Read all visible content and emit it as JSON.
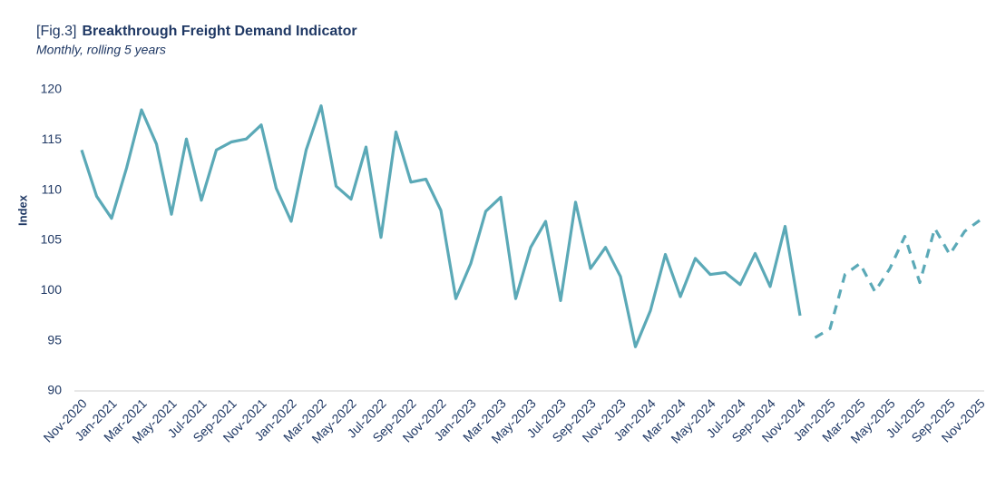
{
  "chart_data": {
    "type": "line",
    "figure_label": "[Fig.3]",
    "title": "Breakthrough Freight Demand Indicator",
    "subtitle": "Monthly, rolling 5 years",
    "ylabel": "Index",
    "categories": [
      "Nov-2020",
      null,
      "Jan-2021",
      null,
      "Mar-2021",
      null,
      "May-2021",
      null,
      "Jul-2021",
      null,
      "Sep-2021",
      null,
      "Nov-2021",
      null,
      "Jan-2022",
      null,
      "Mar-2022",
      null,
      "May-2022",
      null,
      "Jul-2022",
      null,
      "Sep-2022",
      null,
      "Nov-2022",
      null,
      "Jan-2023",
      null,
      "Mar-2023",
      null,
      "May-2023",
      null,
      "Jul-2023",
      null,
      "Sep-2023",
      null,
      "Nov-2023",
      null,
      "Jan-2024",
      null,
      "Mar-2024",
      null,
      "May-2024",
      null,
      "Jul-2024",
      null,
      "Sep-2024",
      null,
      "Nov-2024",
      null,
      "Jan-2025",
      null,
      "Mar-2025",
      null,
      "May-2025",
      null,
      "Jul-2025",
      null,
      "Sep-2025",
      null,
      "Nov-2025"
    ],
    "series": [
      {
        "color": "#5ba9b7",
        "dashed": false,
        "values": [
          114.0,
          109.4,
          107.2,
          112.2,
          118.0,
          114.6,
          107.6,
          115.1,
          109.0,
          114.0,
          114.8,
          115.1,
          116.5,
          110.2,
          106.9,
          114.0,
          118.4,
          110.4,
          109.1,
          114.3,
          105.3,
          115.8,
          110.8,
          111.1,
          108.0,
          99.2,
          102.7,
          107.9,
          109.3,
          99.2,
          104.3,
          106.9,
          99.0,
          108.8,
          102.2,
          104.3,
          101.4,
          94.4,
          98.0,
          103.6,
          99.4,
          103.2,
          101.6,
          101.8,
          100.6,
          103.7,
          100.4,
          106.4,
          97.5,
          null,
          null,
          null,
          null,
          null,
          null,
          null,
          null,
          null,
          null,
          null,
          null
        ]
      },
      {
        "color": "#5ba9b7",
        "dashed": true,
        "values": [
          null,
          null,
          null,
          null,
          null,
          null,
          null,
          null,
          null,
          null,
          null,
          null,
          null,
          null,
          null,
          null,
          null,
          null,
          null,
          null,
          null,
          null,
          null,
          null,
          null,
          null,
          null,
          null,
          null,
          null,
          null,
          null,
          null,
          null,
          null,
          null,
          null,
          null,
          null,
          null,
          null,
          null,
          null,
          null,
          null,
          null,
          null,
          null,
          null,
          95.3,
          96.2,
          101.6,
          102.7,
          99.9,
          102.2,
          105.4,
          100.8,
          106.2,
          103.6,
          105.9,
          107.0
        ]
      }
    ],
    "ylim": [
      90,
      120
    ],
    "yticks": [
      90,
      95,
      100,
      105,
      110,
      115,
      120
    ],
    "grid": false
  }
}
